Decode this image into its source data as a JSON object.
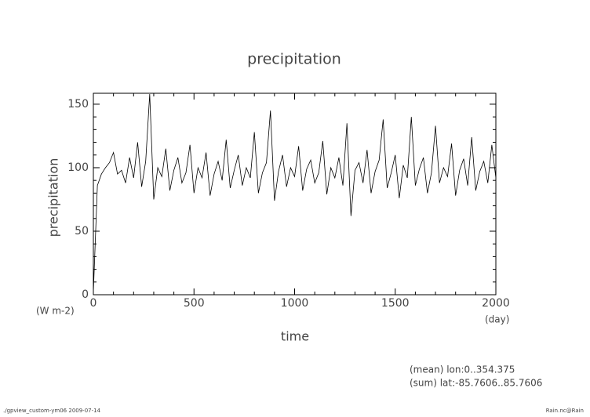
{
  "chart_data": {
    "type": "line",
    "title": "precipitation",
    "y_label": "precipitation",
    "x_label": "time",
    "y_units": "(W m-2)",
    "x_units": "(day)",
    "annotations": [
      "(mean) lon:0..354.375",
      "(sum) lat:-85.7606..85.7606"
    ],
    "footer_left": "./gpview_custom-ym06  2009-07-14",
    "footer_right": "Rain.nc@Rain",
    "x": [
      0,
      20,
      40,
      60,
      80,
      100,
      120,
      140,
      160,
      180,
      200,
      220,
      240,
      260,
      280,
      300,
      320,
      340,
      360,
      380,
      400,
      420,
      440,
      460,
      480,
      500,
      520,
      540,
      560,
      580,
      600,
      620,
      640,
      660,
      680,
      700,
      720,
      740,
      760,
      780,
      800,
      820,
      840,
      860,
      880,
      900,
      920,
      940,
      960,
      980,
      1000,
      1020,
      1040,
      1060,
      1080,
      1100,
      1120,
      1140,
      1160,
      1180,
      1200,
      1220,
      1240,
      1260,
      1280,
      1300,
      1320,
      1340,
      1360,
      1380,
      1400,
      1420,
      1440,
      1460,
      1480,
      1500,
      1520,
      1540,
      1560,
      1580,
      1600,
      1620,
      1640,
      1660,
      1680,
      1700,
      1720,
      1740,
      1760,
      1780,
      1800,
      1820,
      1840,
      1860,
      1880,
      1900,
      1920,
      1940,
      1960,
      1980,
      2000
    ],
    "values": [
      2,
      86,
      95,
      100,
      104,
      112,
      95,
      98,
      88,
      108,
      92,
      120,
      85,
      105,
      158,
      75,
      100,
      93,
      115,
      82,
      98,
      108,
      88,
      96,
      118,
      80,
      100,
      92,
      112,
      78,
      95,
      105,
      90,
      122,
      84,
      98,
      110,
      86,
      100,
      92,
      128,
      80,
      96,
      104,
      145,
      74,
      97,
      110,
      85,
      100,
      93,
      117,
      82,
      99,
      106,
      88,
      96,
      121,
      79,
      100,
      92,
      108,
      86,
      135,
      62,
      98,
      104,
      88,
      114,
      80,
      97,
      106,
      138,
      84,
      96,
      110,
      76,
      102,
      92,
      140,
      86,
      99,
      108,
      80,
      96,
      133,
      88,
      100,
      93,
      119,
      78,
      98,
      107,
      86,
      124,
      82,
      97,
      105,
      88,
      118,
      92
    ],
    "color": "#000000",
    "xlim": [
      0,
      2000
    ],
    "ylim": [
      0,
      158.6
    ],
    "xticks": [
      0,
      500,
      1000,
      1500,
      2000
    ],
    "yticks": [
      0,
      50,
      100,
      150
    ],
    "xminorticks": [
      100,
      200,
      300,
      400,
      600,
      700,
      800,
      900,
      1100,
      1200,
      1300,
      1400,
      1600,
      1700,
      1800,
      1900
    ],
    "yminorticks": [
      10,
      20,
      30,
      40,
      60,
      70,
      80,
      90,
      110,
      120,
      130,
      140
    ]
  }
}
